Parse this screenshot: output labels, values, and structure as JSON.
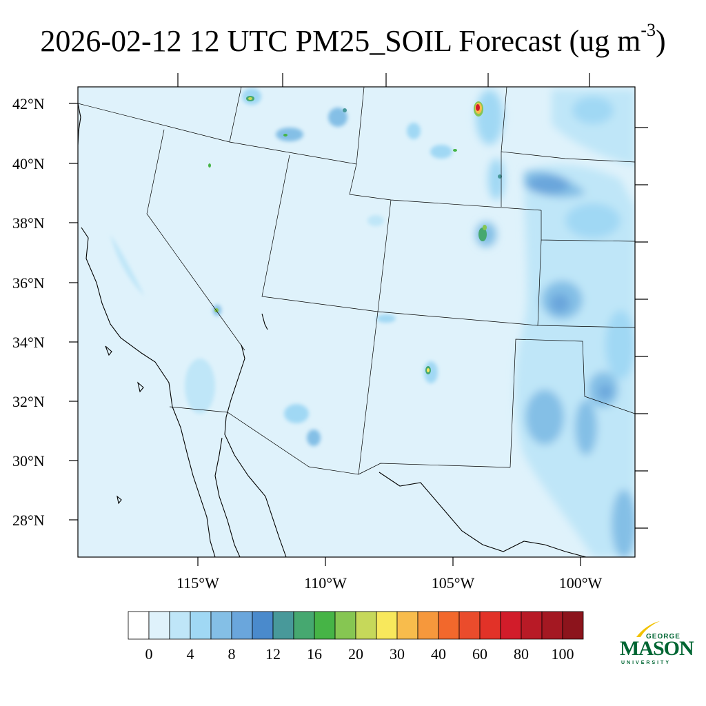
{
  "title": {
    "main": "2026-02-12 12 UTC PM25_SOIL Forecast (ug m",
    "sup": "-3",
    "close": ")"
  },
  "map": {
    "lat_labels": [
      "42°N",
      "40°N",
      "38°N",
      "36°N",
      "34°N",
      "32°N",
      "30°N",
      "28°N"
    ],
    "lon_labels": [
      "115°W",
      "110°W",
      "105°W",
      "100°W"
    ],
    "background_color": "#dff2fb"
  },
  "colorbar": {
    "labels": [
      "0",
      "4",
      "8",
      "12",
      "16",
      "20",
      "30",
      "40",
      "60",
      "80",
      "100"
    ],
    "colors": [
      "#ffffff",
      "#dff2fb",
      "#bfe6f8",
      "#a0d8f4",
      "#84bfe6",
      "#6aa6dc",
      "#4a8acc",
      "#48999a",
      "#46a870",
      "#46b446",
      "#86c652",
      "#c6d85a",
      "#f8e85c",
      "#f8bc4c",
      "#f6983c",
      "#f2682c",
      "#ea4c2c",
      "#e23228",
      "#d21c2a",
      "#b81a26",
      "#a41822",
      "#8c141c"
    ]
  },
  "logo": {
    "line1": "GEORGE",
    "line2": "MASON",
    "line3": "UNIVERSITY",
    "color": "#006633",
    "accent": "#f2c200"
  }
}
